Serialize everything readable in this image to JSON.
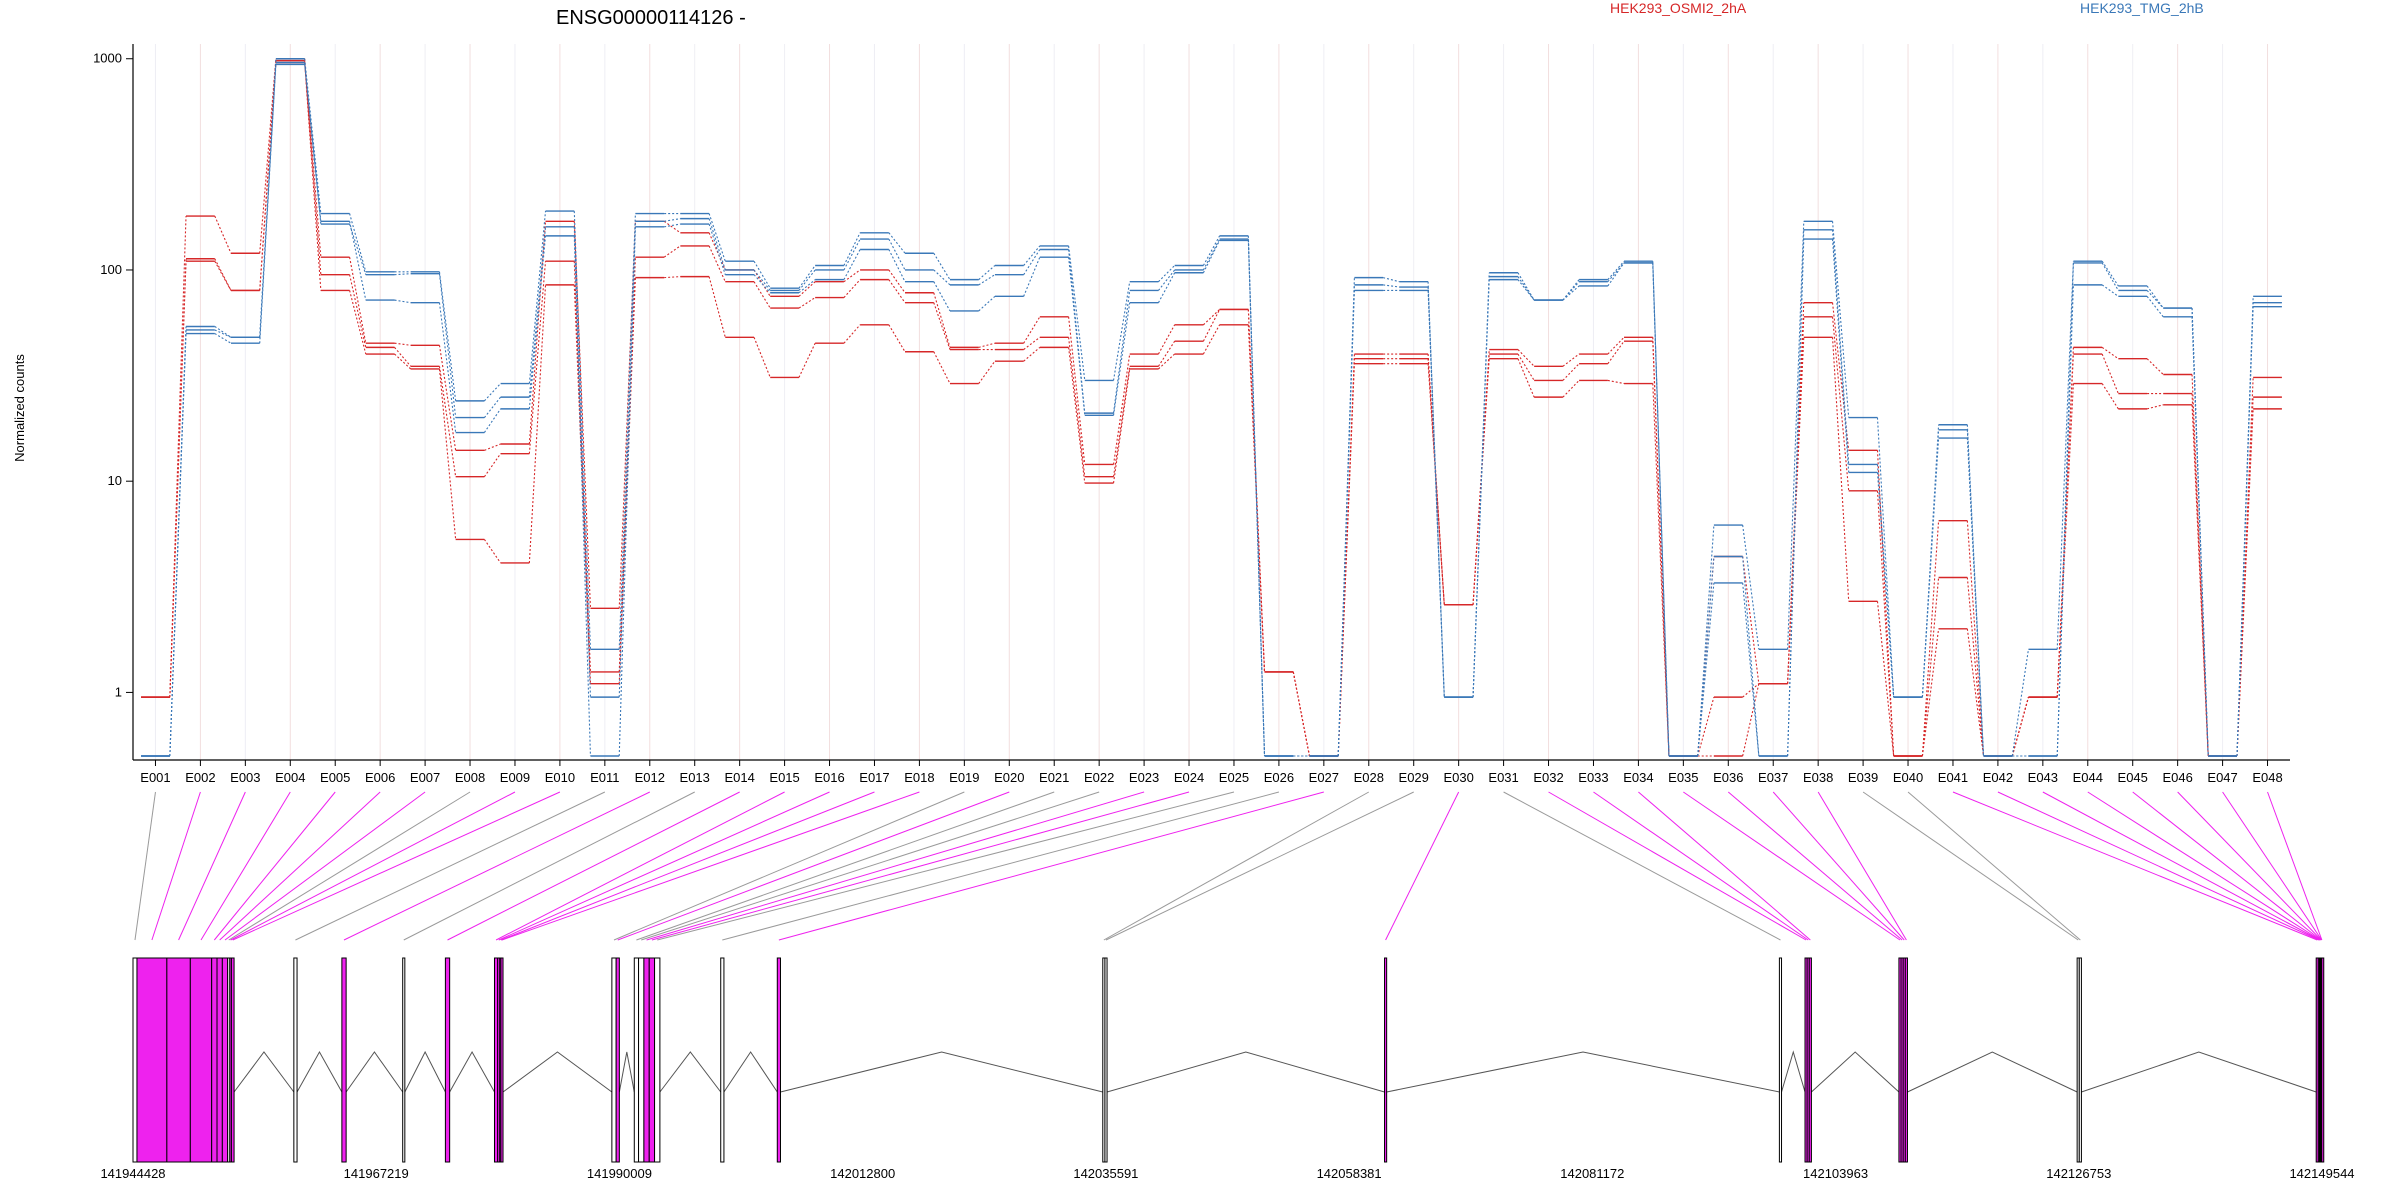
{
  "title": "ENSG00000114126 -",
  "ylabel": "Normalized counts",
  "conditions": [
    {
      "name": "HEK293_OSMI2_2hA",
      "color": "#d62728"
    },
    {
      "name": "HEK293_TMG_2hB",
      "color": "#3a78b8"
    }
  ],
  "chart_data": [
    {
      "type": "line",
      "title": "ENSG00000114126 -",
      "xlabel": "",
      "ylabel": "Normalized counts",
      "yscale": "log",
      "ylim": [
        0.5,
        1100
      ],
      "yticks": [
        1,
        10,
        100,
        1000
      ],
      "grid": "vertical lines at each exon bin",
      "legend": "top-right, condition names",
      "categories": [
        "E001",
        "E002",
        "E003",
        "E004",
        "E005",
        "E006",
        "E007",
        "E008",
        "E009",
        "E010",
        "E011",
        "E012",
        "E013",
        "E014",
        "E015",
        "E016",
        "E017",
        "E018",
        "E019",
        "E020",
        "E021",
        "E022",
        "E023",
        "E024",
        "E025",
        "E026",
        "E027",
        "E028",
        "E029",
        "E030",
        "E031",
        "E032",
        "E033",
        "E034",
        "E035",
        "E036",
        "E037",
        "E038",
        "E039",
        "E040",
        "E041",
        "E042",
        "E043",
        "E044",
        "E045",
        "E046",
        "E047",
        "E048"
      ],
      "series": [
        {
          "name": "HEK293_OSMI2_2hA",
          "color": "#d62728",
          "values": [
            0.95,
            180,
            120,
            1000,
            115,
            45,
            44,
            14,
            15,
            170,
            2.5,
            170,
            150,
            100,
            75,
            88,
            100,
            78,
            43,
            45,
            60,
            12,
            40,
            55,
            65,
            1.25,
            0.5,
            40,
            40,
            2.6,
            42,
            35,
            40,
            48,
            0.5,
            4.4,
            1.1,
            70,
            14,
            0.5,
            6.5,
            0.5,
            0.95,
            43,
            38,
            32,
            0.5,
            31
          ]
        },
        {
          "name": "HEK293_OSMI2_2hA",
          "color": "#d62728",
          "values": [
            0.95,
            110,
            80,
            980,
            95,
            43,
            35,
            10.5,
            13.5,
            110,
            1.25,
            115,
            130,
            88,
            66,
            74,
            90,
            70,
            42,
            42,
            48,
            10.5,
            35,
            46,
            65,
            1.25,
            0.5,
            38,
            38,
            2.6,
            40,
            30,
            36,
            46,
            0.5,
            0.95,
            1.1,
            60,
            9,
            0.5,
            3.5,
            0.5,
            0.95,
            40,
            26,
            26,
            0.5,
            25
          ]
        },
        {
          "name": "HEK293_OSMI2_2hA",
          "color": "#d62728",
          "values": [
            0.95,
            113,
            80,
            960,
            80,
            40,
            34,
            5.3,
            4.1,
            85,
            1.1,
            92,
            93,
            48,
            31,
            45,
            55,
            41,
            29,
            37,
            43,
            9.8,
            34,
            40,
            55,
            1.25,
            0.5,
            36,
            36,
            2.6,
            38,
            25,
            30,
            29,
            0.5,
            0.5,
            1.1,
            48,
            2.7,
            0.5,
            2.0,
            0.5,
            0.95,
            29,
            22,
            23,
            0.5,
            22
          ]
        },
        {
          "name": "HEK293_TMG_2hB",
          "color": "#3a78b8",
          "values": [
            0.5,
            54,
            48,
            1000,
            185,
            98,
            98,
            24,
            29,
            190,
            1.6,
            185,
            185,
            110,
            82,
            105,
            150,
            120,
            90,
            105,
            130,
            30,
            88,
            105,
            145,
            0.5,
            0.5,
            92,
            88,
            0.95,
            97,
            72,
            90,
            110,
            0.5,
            6.2,
            1.6,
            170,
            20,
            0.95,
            18.5,
            0.5,
            1.6,
            110,
            84,
            66,
            0.5,
            75
          ]
        },
        {
          "name": "HEK293_TMG_2hB",
          "color": "#3a78b8",
          "values": [
            0.5,
            52,
            48,
            960,
            165,
            95,
            96,
            20,
            25,
            160,
            0.95,
            170,
            175,
            100,
            80,
            100,
            140,
            100,
            85,
            95,
            125,
            21,
            80,
            100,
            140,
            0.5,
            0.5,
            85,
            83,
            0.95,
            93,
            72,
            88,
            108,
            0.5,
            4.4,
            0.5,
            155,
            12,
            0.95,
            17.5,
            0.5,
            0.5,
            108,
            80,
            66,
            0.5,
            70
          ]
        },
        {
          "name": "HEK293_TMG_2hB",
          "color": "#3a78b8",
          "values": [
            0.5,
            50,
            45,
            940,
            170,
            72,
            70,
            17,
            22,
            145,
            0.5,
            160,
            165,
            95,
            78,
            90,
            125,
            88,
            64,
            75,
            115,
            20.5,
            70,
            97,
            138,
            0.5,
            0.5,
            80,
            80,
            0.95,
            90,
            72,
            84,
            108,
            0.5,
            3.3,
            0.5,
            140,
            11,
            0.95,
            16,
            0.5,
            0.5,
            85,
            75,
            60,
            0.5,
            67
          ]
        }
      ]
    },
    {
      "type": "table",
      "title": "",
      "xlabel": "",
      "ylabel": "",
      "description_of_axis": "genomic coordinate axis",
      "coordinate_ticks": [
        141944428,
        141967219,
        141990009,
        142012800,
        142035591,
        142058381,
        142081172,
        142103963,
        142126753,
        142149544
      ],
      "exons": [
        {
          "id": "E001",
          "start": 141944428,
          "end": 141944800,
          "color": "#9a9a9a"
        },
        {
          "id": "E002",
          "start": 141944800,
          "end": 141947600,
          "color": "#ee22ee"
        },
        {
          "id": "E003",
          "start": 141947600,
          "end": 141949800,
          "color": "#ee22ee"
        },
        {
          "id": "E004",
          "start": 141949800,
          "end": 141951800,
          "color": "#ee22ee"
        },
        {
          "id": "E005",
          "start": 141951800,
          "end": 141952300,
          "color": "#ee22ee"
        },
        {
          "id": "E006",
          "start": 141952300,
          "end": 141952800,
          "color": "#ee22ee"
        },
        {
          "id": "E007",
          "start": 141952800,
          "end": 141953300,
          "color": "#ee22ee"
        },
        {
          "id": "E008",
          "start": 141953300,
          "end": 141953500,
          "color": "#9a9a9a"
        },
        {
          "id": "E009",
          "start": 141953500,
          "end": 141953650,
          "color": "#ee22ee"
        },
        {
          "id": "E010",
          "start": 141953650,
          "end": 141953900,
          "color": "#ee22ee"
        },
        {
          "id": "E011",
          "start": 141959500,
          "end": 141959800,
          "color": "#9a9a9a"
        },
        {
          "id": "E012",
          "start": 141964000,
          "end": 141964400,
          "color": "#ee22ee"
        },
        {
          "id": "E013",
          "start": 141969700,
          "end": 141969900,
          "color": "#9a9a9a"
        },
        {
          "id": "E014",
          "start": 141973700,
          "end": 141974100,
          "color": "#ee22ee"
        },
        {
          "id": "E015",
          "start": 141978300,
          "end": 141978600,
          "color": "#ee22ee"
        },
        {
          "id": "E016",
          "start": 141978600,
          "end": 141978800,
          "color": "#ee22ee"
        },
        {
          "id": "E017",
          "start": 141978800,
          "end": 141979000,
          "color": "#ee22ee"
        },
        {
          "id": "E018",
          "start": 141978900,
          "end": 141979100,
          "color": "#ee22ee"
        },
        {
          "id": "E019",
          "start": 141989300,
          "end": 141989700,
          "color": "#9a9a9a"
        },
        {
          "id": "E020",
          "start": 141989700,
          "end": 141990000,
          "color": "#ee22ee"
        },
        {
          "id": "E021",
          "start": 141991400,
          "end": 141991800,
          "color": "#9a9a9a"
        },
        {
          "id": "E022",
          "start": 141991800,
          "end": 141992300,
          "color": "#9a9a9a"
        },
        {
          "id": "E023",
          "start": 141992300,
          "end": 141992800,
          "color": "#ee22ee"
        },
        {
          "id": "E024",
          "start": 141992800,
          "end": 141993300,
          "color": "#ee22ee"
        },
        {
          "id": "E025",
          "start": 141993300,
          "end": 141993800,
          "color": "#9a9a9a"
        },
        {
          "id": "E026",
          "start": 141999500,
          "end": 141999800,
          "color": "#9a9a9a"
        },
        {
          "id": "E027",
          "start": 142004800,
          "end": 142005100,
          "color": "#ee22ee"
        },
        {
          "id": "E028",
          "start": 142035300,
          "end": 142035500,
          "color": "#9a9a9a"
        },
        {
          "id": "E029",
          "start": 142035500,
          "end": 142035700,
          "color": "#9a9a9a"
        },
        {
          "id": "E030",
          "start": 142061700,
          "end": 142061900,
          "color": "#ee22ee"
        },
        {
          "id": "E031",
          "start": 142098700,
          "end": 142098900,
          "color": "#9a9a9a"
        },
        {
          "id": "E032",
          "start": 142101100,
          "end": 142101300,
          "color": "#ee22ee"
        },
        {
          "id": "E033",
          "start": 142101300,
          "end": 142101500,
          "color": "#ee22ee"
        },
        {
          "id": "E034",
          "start": 142101500,
          "end": 142101700,
          "color": "#ee22ee"
        },
        {
          "id": "E035",
          "start": 142109900,
          "end": 142110100,
          "color": "#ee22ee"
        },
        {
          "id": "E036",
          "start": 142110100,
          "end": 142110300,
          "color": "#ee22ee"
        },
        {
          "id": "E037",
          "start": 142110300,
          "end": 142110500,
          "color": "#ee22ee"
        },
        {
          "id": "E038",
          "start": 142110500,
          "end": 142110700,
          "color": "#ee22ee"
        },
        {
          "id": "E039",
          "start": 142126600,
          "end": 142126800,
          "color": "#9a9a9a"
        },
        {
          "id": "E040",
          "start": 142126800,
          "end": 142127000,
          "color": "#9a9a9a"
        },
        {
          "id": "E041",
          "start": 142149000,
          "end": 142149200,
          "color": "#ee22ee"
        },
        {
          "id": "E042",
          "start": 142149200,
          "end": 142149300,
          "color": "#ee22ee"
        },
        {
          "id": "E043",
          "start": 142149300,
          "end": 142149350,
          "color": "#ee22ee"
        },
        {
          "id": "E044",
          "start": 142149350,
          "end": 142149400,
          "color": "#ee22ee"
        },
        {
          "id": "E045",
          "start": 142149400,
          "end": 142149450,
          "color": "#ee22ee"
        },
        {
          "id": "E046",
          "start": 142149450,
          "end": 142149500,
          "color": "#ee22ee"
        },
        {
          "id": "E047",
          "start": 142149500,
          "end": 142149520,
          "color": "#ee22ee"
        },
        {
          "id": "E048",
          "start": 142149520,
          "end": 142149544,
          "color": "#ee22ee"
        }
      ]
    }
  ],
  "colors": {
    "osmi": "#d62728",
    "tmg": "#3a78b8",
    "exon_highlight": "#ee22ee",
    "exon_plain": "#9a9a9a",
    "grid_light": "#eeeef4"
  }
}
